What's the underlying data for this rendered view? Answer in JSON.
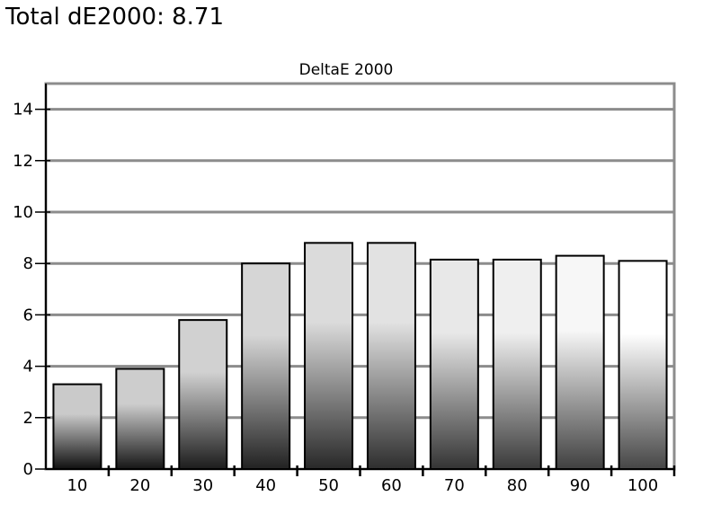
{
  "headline": {
    "label": "Total dE2000:",
    "value": "8.71"
  },
  "chart_data": {
    "type": "bar",
    "title": "DeltaE 2000",
    "xlabel": "",
    "ylabel": "",
    "categories": [
      "10",
      "20",
      "30",
      "40",
      "50",
      "60",
      "70",
      "80",
      "90",
      "100"
    ],
    "values": [
      3.3,
      3.9,
      5.8,
      8.0,
      8.8,
      8.8,
      8.15,
      8.15,
      8.3,
      8.1
    ],
    "ylim": [
      0,
      15
    ],
    "yticks": [
      0,
      2,
      4,
      6,
      8,
      10,
      12,
      14
    ],
    "grid": true,
    "legend": "none",
    "colors": {
      "grid": "#8c8c8c",
      "frame": "#8c8c8c",
      "bar_outline": "#000000"
    }
  }
}
